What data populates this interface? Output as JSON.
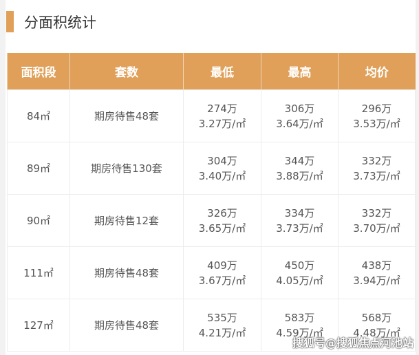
{
  "title": "分面积统计",
  "headers": [
    "面积段",
    "套数",
    "最低",
    "最高",
    "均价"
  ],
  "rows": [
    {
      "area": "84㎡",
      "units": "期房待售48套",
      "low": "274万",
      "low_unit": "3.27万/㎡",
      "high": "306万",
      "high_unit": "3.64万/㎡",
      "avg": "296万",
      "avg_unit": "3.53万/㎡"
    },
    {
      "area": "89㎡",
      "units": "期房待售130套",
      "low": "304万",
      "low_unit": "3.40万/㎡",
      "high": "344万",
      "high_unit": "3.88万/㎡",
      "avg": "332万",
      "avg_unit": "3.73万/㎡"
    },
    {
      "area": "90㎡",
      "units": "期房待售12套",
      "low": "326万",
      "low_unit": "3.65万/㎡",
      "high": "334万",
      "high_unit": "3.73万/㎡",
      "avg": "332万",
      "avg_unit": "3.70万/㎡"
    },
    {
      "area": "111㎡",
      "units": "期房待售48套",
      "low": "409万",
      "low_unit": "3.67万/㎡",
      "high": "450万",
      "high_unit": "4.05万/㎡",
      "avg": "438万",
      "avg_unit": "3.94万/㎡"
    },
    {
      "area": "127㎡",
      "units": "期房待售48套",
      "low": "535万",
      "low_unit": "4.21万/㎡",
      "high": "583万",
      "high_unit": "4.59万/㎡",
      "avg": "568万",
      "avg_unit": "4.48万/㎡"
    }
  ],
  "watermark": "搜狐号@搜狐焦点河池站",
  "colors": {
    "accent": "#e0a05a"
  }
}
